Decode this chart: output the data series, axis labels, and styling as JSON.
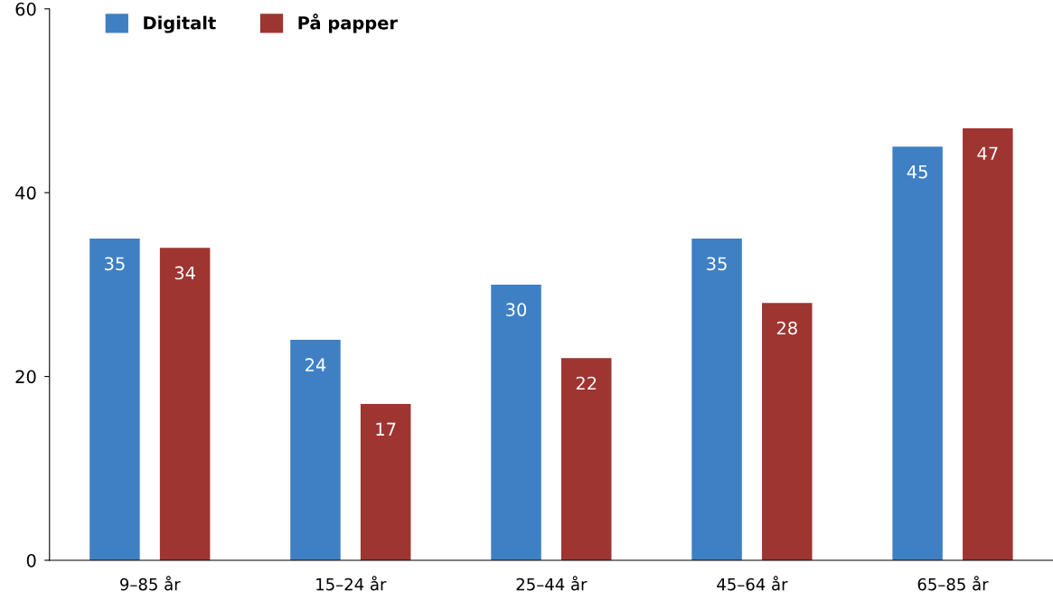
{
  "chart_data": {
    "type": "bar",
    "categories": [
      "9–85 år",
      "15–24 år",
      "25–44 år",
      "45–64 år",
      "65–85 år"
    ],
    "series": [
      {
        "name": "Digitalt",
        "color": "#3f80c4",
        "values": [
          35,
          24,
          30,
          35,
          45
        ]
      },
      {
        "name": "På papper",
        "color": "#9e3531",
        "values": [
          34,
          17,
          22,
          28,
          47
        ]
      }
    ],
    "ylim": [
      0,
      60
    ],
    "yticks": [
      0,
      20,
      40,
      60
    ],
    "data_labels": true,
    "legend": "top left",
    "grid": false
  }
}
